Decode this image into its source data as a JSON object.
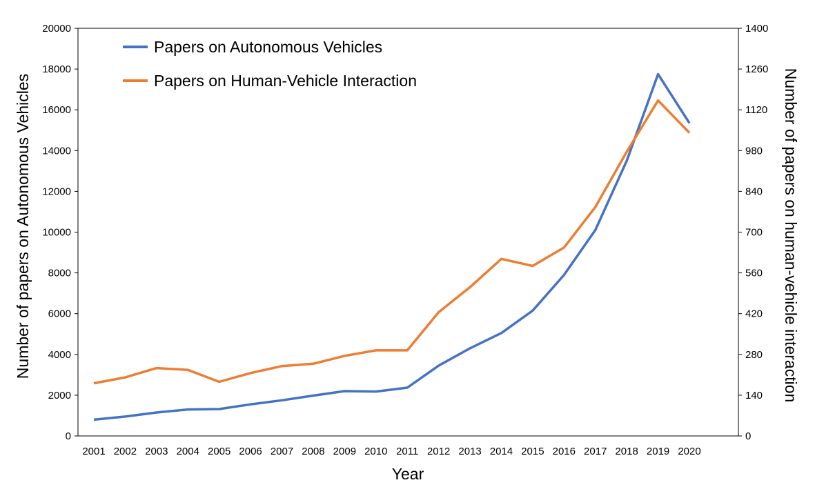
{
  "chart_data": {
    "type": "line",
    "x": [
      "2001",
      "2002",
      "2003",
      "2004",
      "2005",
      "2006",
      "2007",
      "2008",
      "2009",
      "2010",
      "2011",
      "2012",
      "2013",
      "2014",
      "2015",
      "2016",
      "2017",
      "2018",
      "2019",
      "2020"
    ],
    "xlabel": "Year",
    "ylabel_left": "Number of papers on Autonomous Vehicles",
    "ylabel_right": "Number of papers on human-vehicle interaction",
    "ylim_left": [
      0,
      20000
    ],
    "ylim_right": [
      0,
      1400
    ],
    "yticks_left": [
      "0",
      "2000",
      "4000",
      "6000",
      "8000",
      "10000",
      "12000",
      "14000",
      "16000",
      "18000",
      "20000"
    ],
    "yticks_right": [
      "0",
      "140",
      "280",
      "420",
      "560",
      "700",
      "840",
      "980",
      "1120",
      "1260",
      "1400"
    ],
    "grid": false,
    "legend_position": "top-left",
    "series": [
      {
        "name": "Papers on Autonomous Vehicles",
        "axis": "left",
        "color": "#4472C4",
        "values": [
          800,
          950,
          1150,
          1300,
          1320,
          1550,
          1750,
          1980,
          2200,
          2180,
          2370,
          3450,
          4300,
          5050,
          6150,
          7900,
          10100,
          13500,
          17750,
          15350
        ]
      },
      {
        "name": "Papers on Human-Vehicle Interaction",
        "axis": "right",
        "color": "#ED7D31",
        "values": [
          181,
          201,
          233,
          227,
          186,
          216,
          240,
          248,
          275,
          294,
          294,
          425,
          511,
          608,
          584,
          647,
          786,
          976,
          1152,
          1041
        ]
      }
    ]
  }
}
